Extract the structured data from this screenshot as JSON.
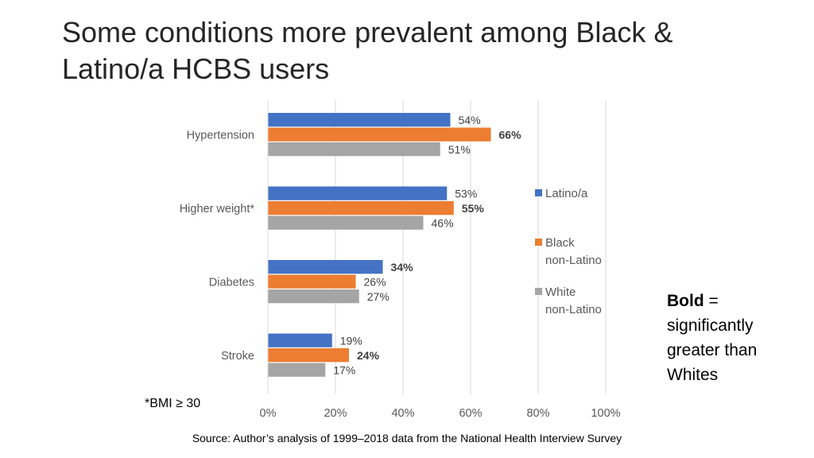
{
  "title": "Some conditions more prevalent among Black & Latino/a HCBS users",
  "footnote": "*BMI ≥ 30",
  "source": "Source: Author’s analysis of 1999–2018 data from the National Health Interview Survey",
  "bold_note": {
    "bold": "Bold",
    "rest": " = significantly greater than Whites"
  },
  "chart_data": {
    "type": "bar",
    "orientation": "horizontal",
    "title": "",
    "xlabel": "",
    "ylabel": "",
    "xlim": [
      0,
      100
    ],
    "x_ticks": [
      "0%",
      "20%",
      "40%",
      "60%",
      "80%",
      "100%"
    ],
    "grid": true,
    "legend_position": "right",
    "categories": [
      "Hypertension",
      "Higher weight*",
      "Diabetes",
      "Stroke"
    ],
    "series": [
      {
        "name": "Latino/a",
        "color": "#4472C4",
        "values": [
          54,
          53,
          34,
          19
        ],
        "labels": [
          "54%",
          "53%",
          "34%",
          "19%"
        ],
        "bold": [
          false,
          false,
          true,
          false
        ]
      },
      {
        "name": "Black non-Latino",
        "color": "#ED7D31",
        "values": [
          66,
          55,
          26,
          24
        ],
        "labels": [
          "66%",
          "55%",
          "26%",
          "24%"
        ],
        "bold": [
          true,
          true,
          false,
          true
        ]
      },
      {
        "name": "White non-Latino",
        "color": "#A5A5A5",
        "values": [
          51,
          46,
          27,
          17
        ],
        "labels": [
          "51%",
          "46%",
          "27%",
          "17%"
        ],
        "bold": [
          false,
          false,
          false,
          false
        ]
      }
    ],
    "legend": [
      {
        "lines": [
          "Latino/a"
        ],
        "color": "#4472C4"
      },
      {
        "lines": [
          "Black",
          "non-Latino"
        ],
        "color": "#ED7D31"
      },
      {
        "lines": [
          "White",
          "non-Latino"
        ],
        "color": "#A5A5A5"
      }
    ]
  }
}
